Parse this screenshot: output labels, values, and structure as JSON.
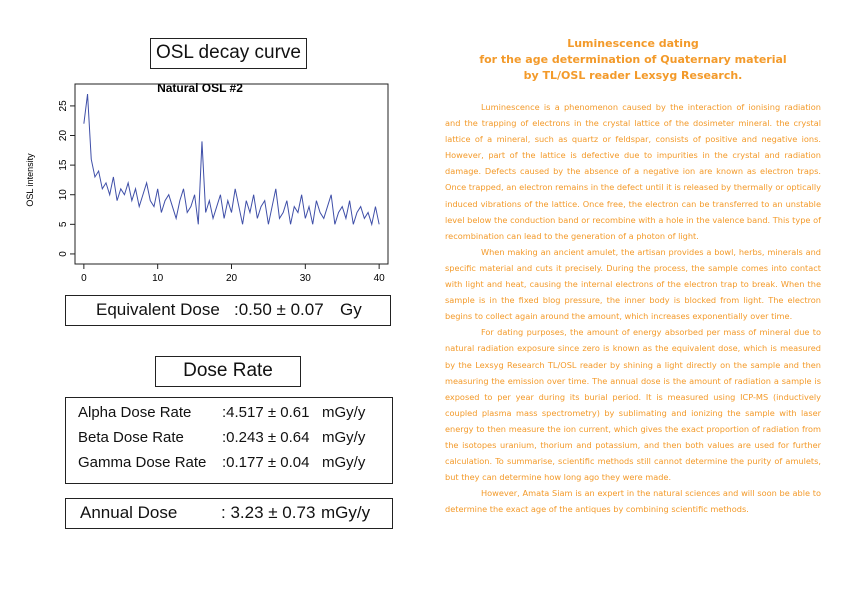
{
  "left": {
    "osl_heading": "OSL decay curve",
    "equivalent_dose": {
      "label": "Equivalent Dose",
      "value": ":0.50 ± 0.07",
      "unit": "Gy"
    },
    "dose_rate_heading": "Dose Rate",
    "dose_rates": [
      {
        "label": "Alpha Dose Rate",
        "value": ":4.517 ± 0.61",
        "unit": "mGy/y"
      },
      {
        "label": "Beta Dose Rate",
        "value": ":0.243 ± 0.64",
        "unit": "mGy/y"
      },
      {
        "label": "Gamma Dose Rate",
        "value": ":0.177 ± 0.04",
        "unit": "mGy/y"
      }
    ],
    "annual_dose": {
      "label": "Annual Dose",
      "value": ": 3.23 ± 0.73",
      "unit": "mGy/y"
    }
  },
  "chart_data": {
    "type": "line",
    "title": "Natural OSL #2",
    "y_label": "OSL intensity",
    "x": [
      0,
      0.5,
      1,
      1.5,
      2,
      2.5,
      3,
      3.5,
      4,
      4.5,
      5,
      5.5,
      6,
      6.5,
      7,
      7.5,
      8,
      8.5,
      9,
      9.5,
      10,
      10.5,
      11,
      11.5,
      12,
      12.5,
      13,
      13.5,
      14,
      14.5,
      15,
      15.5,
      16,
      16.5,
      17,
      17.5,
      18,
      18.5,
      19,
      19.5,
      20,
      20.5,
      21,
      21.5,
      22,
      22.5,
      23,
      23.5,
      24,
      24.5,
      25,
      25.5,
      26,
      26.5,
      27,
      27.5,
      28,
      28.5,
      29,
      29.5,
      30,
      30.5,
      31,
      31.5,
      32,
      32.5,
      33,
      33.5,
      34,
      34.5,
      35,
      35.5,
      36,
      36.5,
      37,
      37.5,
      38,
      38.5,
      39,
      39.5,
      40
    ],
    "series": [
      {
        "name": "Natural OSL",
        "color": "#3f4fa8",
        "values": [
          22,
          27,
          16,
          13,
          14,
          11,
          12,
          10,
          13,
          9,
          11,
          10,
          12,
          9,
          11,
          8,
          10,
          12,
          9,
          8,
          11,
          7,
          9,
          10,
          8,
          6,
          9,
          11,
          7,
          8,
          10,
          5,
          19,
          7,
          9,
          6,
          8,
          10,
          6,
          9,
          7,
          11,
          8,
          5,
          9,
          7,
          10,
          6,
          8,
          9,
          5,
          8,
          11,
          6,
          7,
          9,
          5,
          8,
          7,
          10,
          6,
          8,
          5,
          9,
          7,
          6,
          8,
          10,
          5,
          7,
          8,
          6,
          9,
          5,
          7,
          8,
          6,
          7,
          5,
          8,
          5
        ]
      }
    ],
    "xlim": [
      -1.2,
      41.2
    ],
    "ylim": [
      -1.7,
      28.7
    ],
    "xticks": [
      0,
      10,
      20,
      30,
      40
    ],
    "yticks": [
      0,
      5,
      10,
      15,
      20,
      25
    ]
  },
  "right": {
    "title": [
      "Luminescence dating",
      "for the age determination of Quaternary material",
      "by TL/OSL reader Lexsyg Research."
    ],
    "paragraphs": [
      "Luminescence is a phenomenon caused by the interaction of ionising radiation and the trapping of electrons in the crystal lattice of the dosimeter mineral. the crystal lattice of a mineral, such as quartz or feldspar, consists of positive and negative ions. However, part of the lattice is defective due to impurities in the crystal and radiation damage. Defects caused by the absence of a negative ion are known as electron traps. Once trapped, an electron remains in the defect until it is released by thermally or optically induced vibrations of the lattice. Once free, the electron can be transferred to an unstable level below the conduction band or recombine with a hole in the valence band. This type of recombination can lead to the generation of a photon of light.",
      "When making an ancient amulet, the artisan provides a bowl, herbs, minerals and specific material and cuts it precisely. During the process, the sample comes into contact with light and heat, causing the internal electrons of the electron trap to break. When the sample is in the fixed blog pressure, the inner body is blocked from light. The electron begins to collect again around the amount, which increases exponentially over time.",
      "For dating purposes, the amount of energy absorbed per mass of mineral due to natural radiation exposure since zero is known as the equivalent dose, which is measured by the Lexsyg Research TL/OSL reader by shining a light directly on the sample and then measuring the emission over time. The annual dose is the amount of radiation a sample is exposed to per year during its burial period. It is measured using ICP-MS (inductively coupled plasma mass spectrometry) by sublimating and ionizing the sample with laser energy to then measure the ion current, which gives the exact proportion of radiation from the isotopes uranium, thorium and potassium, and then both values are used for further calculation. To summarise, scientific methods still cannot determine the purity of amulets, but they can determine how long ago they were made.",
      "However, Amata Siam is an expert in the natural sciences and will soon be able to determine the exact age of the antiques by combining scientific methods."
    ]
  }
}
